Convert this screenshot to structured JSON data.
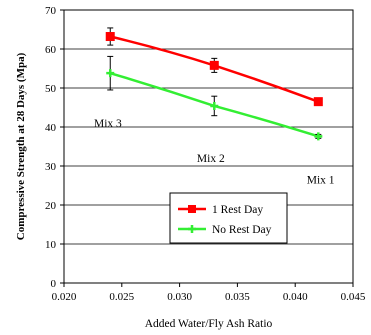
{
  "chart_data": {
    "type": "line",
    "xlabel": "Added Water/Fly Ash Ratio",
    "ylabel": "Compressive Strength at 28 Days (Mpa)",
    "xlim": [
      0.02,
      0.045
    ],
    "ylim": [
      0,
      70
    ],
    "x_ticks": [
      "0.020",
      "0.025",
      "0.030",
      "0.035",
      "0.040",
      "0.045"
    ],
    "y_ticks": [
      "0",
      "10",
      "20",
      "30",
      "40",
      "50",
      "60",
      "70"
    ],
    "grid": "horizontal",
    "legend_position": "bottom-center",
    "series": [
      {
        "name": "1 Rest Day",
        "color": "#ff0000",
        "marker": "square",
        "x": [
          0.024,
          0.033,
          0.042
        ],
        "y": [
          63.2,
          55.8,
          46.5
        ],
        "error": [
          2.2,
          1.8,
          0.5
        ]
      },
      {
        "name": "No Rest Day",
        "color": "#33ee33",
        "marker": "plus",
        "x": [
          0.024,
          0.033,
          0.042
        ],
        "y": [
          53.8,
          45.4,
          37.6
        ],
        "error": [
          4.3,
          2.5,
          0.5
        ]
      }
    ],
    "annotations": [
      {
        "text": "Mix 3",
        "x": 0.0238,
        "y": 41
      },
      {
        "text": "Mix 2",
        "x": 0.0327,
        "y": 32
      },
      {
        "text": "Mix 1",
        "x": 0.0422,
        "y": 26.5
      }
    ]
  }
}
